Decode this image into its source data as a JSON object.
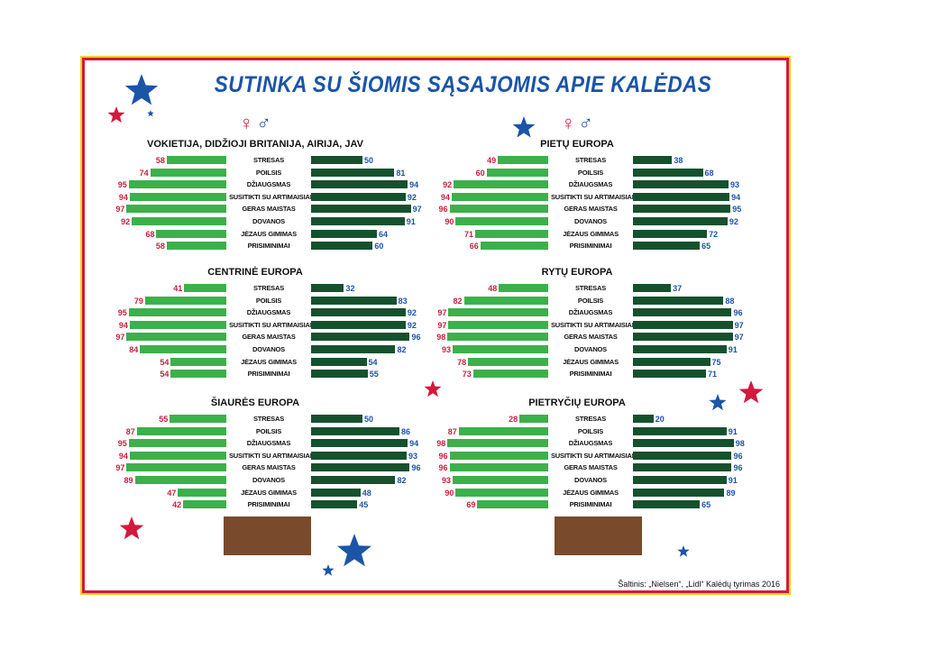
{
  "title": "SUTINKA SU ŠIOMIS SĄSAJOMIS APIE KALĖDAS",
  "symbols": {
    "female": "♀",
    "male": "♂"
  },
  "source": "Šaltinis: „Nielsen“, „Lidl“ Kalėdų tyrimas 2016",
  "colors": {
    "female_bar": "#3cb04b",
    "male_bar": "#16512e",
    "female_text": "#c8203f",
    "male_text": "#1a55a8",
    "frame": "#d11a3c",
    "trunk": "#7a4a2c"
  },
  "chart_data": [
    {
      "type": "bar",
      "title": "VOKIETIJA, DIDŽIOJI BRITANIJA, AIRIJA, JAV",
      "categories": [
        "STRESAS",
        "POILSIS",
        "DŽIAUGSMAS",
        "SUSITIKTI SU ARTIMAISIAIS",
        "GERAS MAISTAS",
        "DOVANOS",
        "JĖZAUS GIMIMAS",
        "PRISIMINIMAI"
      ],
      "series": [
        {
          "name": "♀",
          "values": [
            58,
            74,
            95,
            94,
            97,
            92,
            68,
            58
          ]
        },
        {
          "name": "♂",
          "values": [
            50,
            81,
            94,
            92,
            97,
            91,
            64,
            60
          ]
        }
      ]
    },
    {
      "type": "bar",
      "title": "PIETŲ EUROPA",
      "categories": [
        "STRESAS",
        "POILSIS",
        "DŽIAUGSMAS",
        "SUSITIKTI SU ARTIMAISIAIS",
        "GERAS MAISTAS",
        "DOVANOS",
        "JĖZAUS GIMIMAS",
        "PRISIMINIMAI"
      ],
      "series": [
        {
          "name": "♀",
          "values": [
            49,
            60,
            92,
            94,
            96,
            90,
            71,
            66
          ]
        },
        {
          "name": "♂",
          "values": [
            38,
            68,
            93,
            94,
            95,
            92,
            72,
            65
          ]
        }
      ]
    },
    {
      "type": "bar",
      "title": "CENTRINĖ EUROPA",
      "categories": [
        "STRESAS",
        "POILSIS",
        "DŽIAUGSMAS",
        "SUSITIKTI SU ARTIMAISIAIS",
        "GERAS MAISTAS",
        "DOVANOS",
        "JĖZAUS GIMIMAS",
        "PRISIMINIMAI"
      ],
      "series": [
        {
          "name": "♀",
          "values": [
            41,
            79,
            95,
            94,
            97,
            84,
            54,
            54
          ]
        },
        {
          "name": "♂",
          "values": [
            32,
            83,
            92,
            92,
            96,
            82,
            54,
            55
          ]
        }
      ]
    },
    {
      "type": "bar",
      "title": "RYTŲ EUROPA",
      "categories": [
        "STRESAS",
        "POILSIS",
        "DŽIAUGSMAS",
        "SUSITIKTI SU ARTIMAISIAIS",
        "GERAS MAISTAS",
        "DOVANOS",
        "JĖZAUS GIMIMAS",
        "PRISIMINIMAI"
      ],
      "series": [
        {
          "name": "♀",
          "values": [
            48,
            82,
            97,
            97,
            98,
            93,
            78,
            73
          ]
        },
        {
          "name": "♂",
          "values": [
            37,
            88,
            96,
            97,
            97,
            91,
            75,
            71
          ]
        }
      ]
    },
    {
      "type": "bar",
      "title": "ŠIAURĖS EUROPA",
      "categories": [
        "STRESAS",
        "POILSIS",
        "DŽIAUGSMAS",
        "SUSITIKTI SU ARTIMAISIAIS",
        "GERAS MAISTAS",
        "DOVANOS",
        "JĖZAUS GIMIMAS",
        "PRISIMINIMAI"
      ],
      "series": [
        {
          "name": "♀",
          "values": [
            55,
            87,
            95,
            94,
            97,
            89,
            47,
            42
          ]
        },
        {
          "name": "♂",
          "values": [
            50,
            86,
            94,
            93,
            96,
            82,
            48,
            45
          ]
        }
      ]
    },
    {
      "type": "bar",
      "title": "PIETRYČIŲ EUROPA",
      "categories": [
        "STRESAS",
        "POILSIS",
        "DŽIAUGSMAS",
        "SUSITIKTI SU ARTIMAISIAIS",
        "GERAS MAISTAS",
        "DOVANOS",
        "JĖZAUS GIMIMAS",
        "PRISIMINIMAI"
      ],
      "series": [
        {
          "name": "♀",
          "values": [
            28,
            87,
            98,
            96,
            96,
            93,
            90,
            69
          ]
        },
        {
          "name": "♂",
          "values": [
            20,
            91,
            98,
            96,
            96,
            91,
            89,
            65
          ]
        }
      ]
    }
  ]
}
